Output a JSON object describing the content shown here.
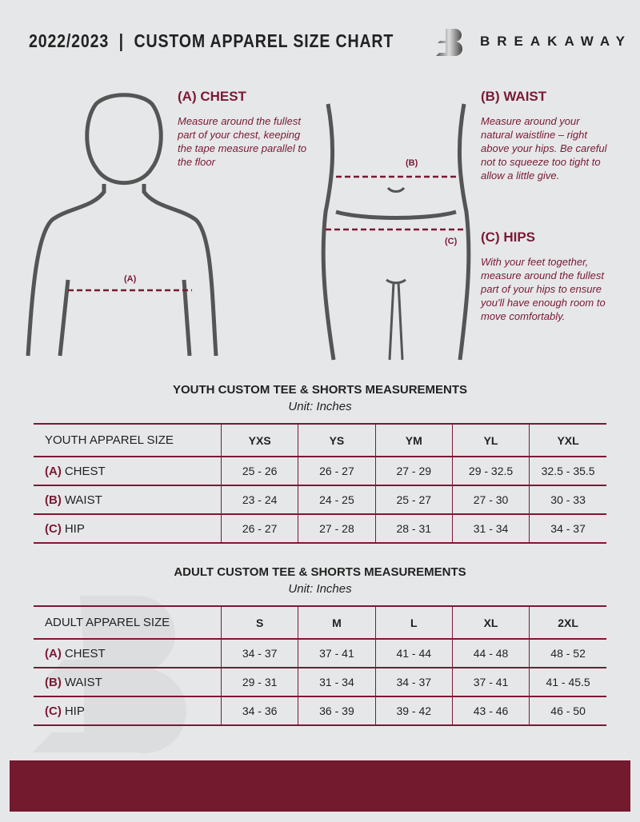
{
  "header": {
    "title": "2022/2023  |  CUSTOM APPAREL SIZE CHART",
    "brand": "BREAKAWAY"
  },
  "colors": {
    "accent": "#7a1a33",
    "background": "#e6e7e9",
    "footer": "#731a2e"
  },
  "guides": {
    "chest": {
      "heading": "(A) CHEST",
      "label": "(A)",
      "text": "Measure around the fullest part of your chest, keeping the tape measure parallel to the floor"
    },
    "waist": {
      "heading": "(B) WAIST",
      "label": "(B)",
      "text": "Measure around your natural waistline – right above your hips. Be careful not to squeeze too tight to allow a little give."
    },
    "hips": {
      "heading": "(C) HIPS",
      "label": "(C)",
      "text": "With your feet together, measure around the fullest part of your hips to ensure you'll have enough room to move comfortably."
    }
  },
  "youth": {
    "title": "YOUTH CUSTOM TEE & SHORTS MEASUREMENTS",
    "unit": "Unit: Inches",
    "header": "YOUTH APPAREL SIZE",
    "sizes": [
      "YXS",
      "YS",
      "YM",
      "YL",
      "YXL"
    ],
    "rows": [
      {
        "letter": "(A)",
        "name": "CHEST",
        "values": [
          "25 - 26",
          "26 - 27",
          "27 - 29",
          "29 - 32.5",
          "32.5 - 35.5"
        ]
      },
      {
        "letter": "(B)",
        "name": "WAIST",
        "values": [
          "23 - 24",
          "24 - 25",
          "25 - 27",
          "27 - 30",
          "30 - 33"
        ]
      },
      {
        "letter": "(C)",
        "name": "HIP",
        "values": [
          "26 - 27",
          "27 - 28",
          "28 - 31",
          "31 - 34",
          "34 - 37"
        ]
      }
    ]
  },
  "adult": {
    "title": "ADULT CUSTOM TEE & SHORTS MEASUREMENTS",
    "unit": "Unit: Inches",
    "header": "ADULT APPAREL SIZE",
    "sizes": [
      "S",
      "M",
      "L",
      "XL",
      "2XL"
    ],
    "rows": [
      {
        "letter": "(A)",
        "name": "CHEST",
        "values": [
          "34 - 37",
          "37 - 41",
          "41 - 44",
          "44 - 48",
          "48 - 52"
        ]
      },
      {
        "letter": "(B)",
        "name": "WAIST",
        "values": [
          "29 - 31",
          "31 - 34",
          "34 - 37",
          "37 - 41",
          "41 - 45.5"
        ]
      },
      {
        "letter": "(C)",
        "name": "HIP",
        "values": [
          "34 - 36",
          "36 - 39",
          "39 - 42",
          "43 - 46",
          "46 - 50"
        ]
      }
    ]
  }
}
